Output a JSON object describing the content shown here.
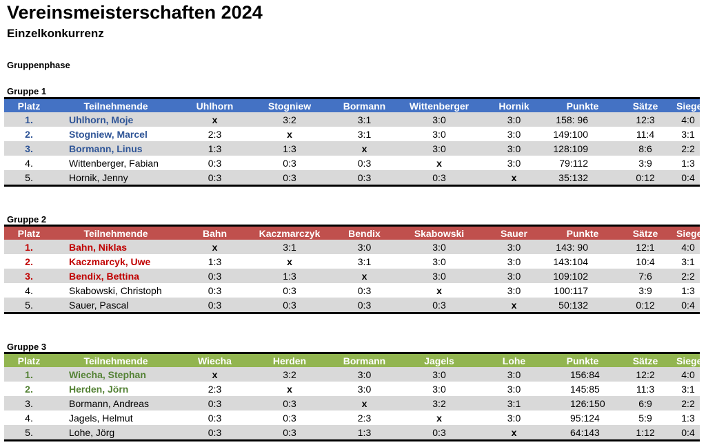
{
  "title": "Vereinsmeisterschaften 2024",
  "subtitle": "Einzelkonkurrenz",
  "phase": "Gruppenphase",
  "colors": {
    "group1_header": "#4472c4",
    "group2_header": "#c0504d",
    "group3_header": "#92b550",
    "group1_highlight": "#2f5597",
    "group2_highlight": "#c00000",
    "group3_highlight": "#548235",
    "shaded_row": "#d9d9d9"
  },
  "groups": [
    {
      "label": "Gruppe 1",
      "headers": [
        "Platz",
        "Teilnehmende",
        "Uhlhorn",
        "Stogniew",
        "Bormann",
        "Wittenberger",
        "Hornik",
        "Punkte",
        "Sätze",
        "Siege"
      ],
      "rows": [
        {
          "rank": "1.",
          "name": "Uhlhorn, Moje",
          "r1": "x",
          "r2": "3:2",
          "r3": "3:1",
          "r4": "3:0",
          "r5": "3:0",
          "points": "158:  96",
          "sets": "12:3",
          "wins": "4:0"
        },
        {
          "rank": "2.",
          "name": "Stogniew, Marcel",
          "r1": "2:3",
          "r2": "x",
          "r3": "3:1",
          "r4": "3:0",
          "r5": "3:0",
          "points": "149:100",
          "sets": "11:4",
          "wins": "3:1"
        },
        {
          "rank": "3.",
          "name": "Bormann, Linus",
          "r1": "1:3",
          "r2": "1:3",
          "r3": "x",
          "r4": "3:0",
          "r5": "3:0",
          "points": "128:109",
          "sets": "8:6",
          "wins": "2:2"
        },
        {
          "rank": "4.",
          "name": "Wittenberger, Fabian",
          "r1": "0:3",
          "r2": "0:3",
          "r3": "0:3",
          "r4": "x",
          "r5": "3:0",
          "points": "79:112",
          "sets": "3:9",
          "wins": "1:3"
        },
        {
          "rank": "5.",
          "name": "Hornik, Jenny",
          "r1": "0:3",
          "r2": "0:3",
          "r3": "0:3",
          "r4": "0:3",
          "r5": "x",
          "points": "35:132",
          "sets": "0:12",
          "wins": "0:4"
        }
      ]
    },
    {
      "label": "Gruppe 2",
      "headers": [
        "Platz",
        "Teilnehmende",
        "Bahn",
        "Kaczmarczyk",
        "Bendix",
        "Skabowski",
        "Sauer",
        "Punkte",
        "Sätze",
        "Siege"
      ],
      "rows": [
        {
          "rank": "1.",
          "name": "Bahn, Niklas",
          "r1": "x",
          "r2": "3:1",
          "r3": "3:0",
          "r4": "3:0",
          "r5": "3:0",
          "points": "143:  90",
          "sets": "12:1",
          "wins": "4:0"
        },
        {
          "rank": "2.",
          "name": "Kaczmarcyk, Uwe",
          "r1": "1:3",
          "r2": "x",
          "r3": "3:1",
          "r4": "3:0",
          "r5": "3:0",
          "points": "143:104",
          "sets": "10:4",
          "wins": "3:1"
        },
        {
          "rank": "3.",
          "name": "Bendix, Bettina",
          "r1": "0:3",
          "r2": "1:3",
          "r3": "x",
          "r4": "3:0",
          "r5": "3:0",
          "points": "109:102",
          "sets": "7:6",
          "wins": "2:2"
        },
        {
          "rank": "4.",
          "name": "Skabowski, Christoph",
          "r1": "0:3",
          "r2": "0:3",
          "r3": "0:3",
          "r4": "x",
          "r5": "3:0",
          "points": "100:117",
          "sets": "3:9",
          "wins": "1:3"
        },
        {
          "rank": "5.",
          "name": "Sauer, Pascal",
          "r1": "0:3",
          "r2": "0:3",
          "r3": "0:3",
          "r4": "0:3",
          "r5": "x",
          "points": "50:132",
          "sets": "0:12",
          "wins": "0:4"
        }
      ]
    },
    {
      "label": "Gruppe 3",
      "headers": [
        "Platz",
        "Teilnehmende",
        "Wiecha",
        "Herden",
        "Bormann",
        "Jagels",
        "Lohe",
        "Punkte",
        "Sätze",
        "Siege"
      ],
      "rows": [
        {
          "rank": "1.",
          "name": "Wiecha, Stephan",
          "r1": "x",
          "r2": "3:2",
          "r3": "3:0",
          "r4": "3:0",
          "r5": "3:0",
          "points": "156:84",
          "sets": "12:2",
          "wins": "4:0"
        },
        {
          "rank": "2.",
          "name": "Herden, Jörn",
          "r1": "2:3",
          "r2": "x",
          "r3": "3:0",
          "r4": "3:0",
          "r5": "3:0",
          "points": "145:85",
          "sets": "11:3",
          "wins": "3:1"
        },
        {
          "rank": "3.",
          "name": "Bormann, Andreas",
          "r1": "0:3",
          "r2": "0:3",
          "r3": "x",
          "r4": "3:2",
          "r5": "3:1",
          "points": "126:150",
          "sets": "6:9",
          "wins": "2:2"
        },
        {
          "rank": "4.",
          "name": "Jagels, Helmut",
          "r1": "0:3",
          "r2": "0:3",
          "r3": "2:3",
          "r4": "x",
          "r5": "3:0",
          "points": "95:124",
          "sets": "5:9",
          "wins": "1:3"
        },
        {
          "rank": "5.",
          "name": "Lohe, Jörg",
          "r1": "0:3",
          "r2": "0:3",
          "r3": "1:3",
          "r4": "0:3",
          "r5": "x",
          "points": "64:143",
          "sets": "1:12",
          "wins": "0:4"
        }
      ]
    }
  ]
}
